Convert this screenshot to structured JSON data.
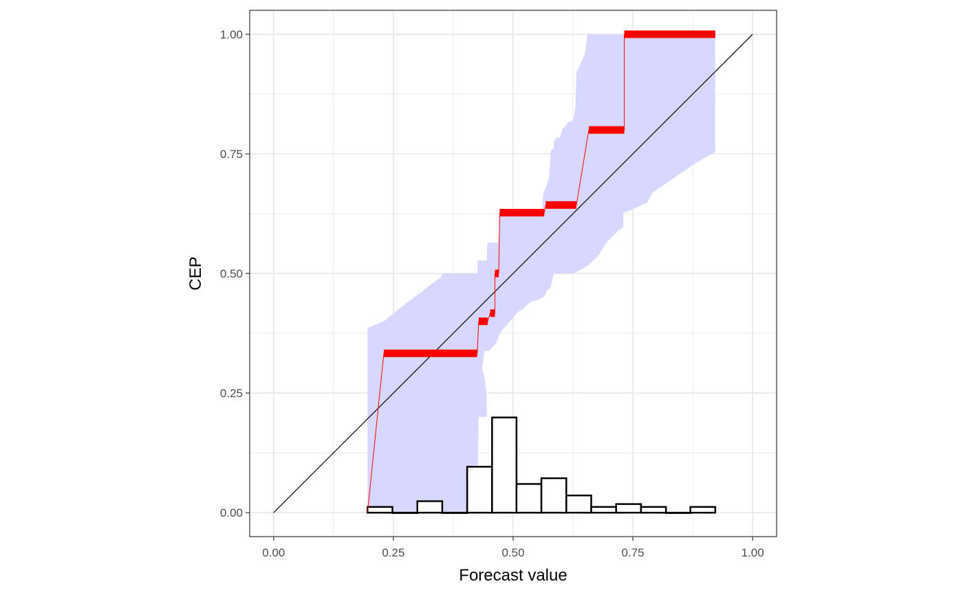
{
  "chart_data": {
    "type": "line",
    "title": "",
    "xlabel": "Forecast value",
    "ylabel": "CEP",
    "xlim": [
      -0.05,
      1.05
    ],
    "ylim": [
      -0.05,
      1.05
    ],
    "x_ticks": [
      0.0,
      0.25,
      0.5,
      0.75,
      1.0
    ],
    "x_tick_labels": [
      "0.00",
      "0.25",
      "0.50",
      "0.75",
      "1.00"
    ],
    "y_ticks": [
      0.0,
      0.25,
      0.5,
      0.75,
      1.0
    ],
    "y_tick_labels": [
      "0.00",
      "0.25",
      "0.50",
      "0.75",
      "1.00"
    ],
    "grid": true,
    "colors": {
      "band": "#d7d7ff",
      "cep": "#ff0000",
      "diagonal": "#000000",
      "histogram_fill": "#ffffff",
      "histogram_stroke": "#000000",
      "grid": "#ebebeb",
      "panel_border": "#333333"
    },
    "diagonal": [
      [
        0,
        0
      ],
      [
        1,
        1
      ]
    ],
    "band_upper": [
      [
        0.196,
        0.386
      ],
      [
        0.23,
        0.4
      ],
      [
        0.26,
        0.425
      ],
      [
        0.3,
        0.455
      ],
      [
        0.33,
        0.478
      ],
      [
        0.35,
        0.493
      ],
      [
        0.352,
        0.5
      ],
      [
        0.425,
        0.5
      ],
      [
        0.426,
        0.527
      ],
      [
        0.445,
        0.527
      ],
      [
        0.446,
        0.564
      ],
      [
        0.468,
        0.564
      ],
      [
        0.47,
        0.575
      ],
      [
        0.472,
        0.6
      ],
      [
        0.472,
        0.62
      ],
      [
        0.48,
        0.63
      ],
      [
        0.56,
        0.63
      ],
      [
        0.563,
        0.666
      ],
      [
        0.575,
        0.7
      ],
      [
        0.578,
        0.745
      ],
      [
        0.578,
        0.756
      ],
      [
        0.585,
        0.762
      ],
      [
        0.585,
        0.775
      ],
      [
        0.59,
        0.784
      ],
      [
        0.598,
        0.784
      ],
      [
        0.602,
        0.8
      ],
      [
        0.615,
        0.816
      ],
      [
        0.625,
        0.82
      ],
      [
        0.63,
        0.846
      ],
      [
        0.632,
        0.918
      ],
      [
        0.65,
        0.96
      ],
      [
        0.655,
        1.0
      ],
      [
        0.922,
        1.0
      ]
    ],
    "band_lower": [
      [
        0.922,
        0.754
      ],
      [
        0.88,
        0.73
      ],
      [
        0.79,
        0.668
      ],
      [
        0.78,
        0.648
      ],
      [
        0.74,
        0.63
      ],
      [
        0.73,
        0.627
      ],
      [
        0.73,
        0.597
      ],
      [
        0.72,
        0.59
      ],
      [
        0.695,
        0.565
      ],
      [
        0.68,
        0.54
      ],
      [
        0.66,
        0.52
      ],
      [
        0.645,
        0.51
      ],
      [
        0.625,
        0.5
      ],
      [
        0.585,
        0.5
      ],
      [
        0.578,
        0.47
      ],
      [
        0.57,
        0.464
      ],
      [
        0.565,
        0.452
      ],
      [
        0.555,
        0.446
      ],
      [
        0.535,
        0.44
      ],
      [
        0.52,
        0.425
      ],
      [
        0.51,
        0.42
      ],
      [
        0.48,
        0.385
      ],
      [
        0.47,
        0.37
      ],
      [
        0.465,
        0.355
      ],
      [
        0.45,
        0.338
      ],
      [
        0.44,
        0.338
      ],
      [
        0.435,
        0.3
      ],
      [
        0.44,
        0.285
      ],
      [
        0.445,
        0.24
      ],
      [
        0.445,
        0.2
      ],
      [
        0.428,
        0.2
      ],
      [
        0.425,
        0.0
      ],
      [
        0.196,
        0.0
      ]
    ],
    "cep_series": {
      "segments": [
        {
          "x": [
            0.23,
            0.425
          ],
          "y": 0.333
        },
        {
          "x": [
            0.428,
            0.447
          ],
          "y": 0.4
        },
        {
          "x": [
            0.452,
            0.462
          ],
          "y": 0.417
        },
        {
          "x": [
            0.462,
            0.47
          ],
          "y": 0.5
        },
        {
          "x": [
            0.472,
            0.565
          ],
          "y": 0.627
        },
        {
          "x": [
            0.568,
            0.632
          ],
          "y": 0.643
        },
        {
          "x": [
            0.658,
            0.732
          ],
          "y": 0.8
        },
        {
          "x": [
            0.732,
            0.922
          ],
          "y": 1.0
        }
      ],
      "connector": [
        [
          0.196,
          0.0
        ],
        [
          0.23,
          0.333
        ],
        [
          0.425,
          0.333
        ],
        [
          0.428,
          0.4
        ],
        [
          0.447,
          0.4
        ],
        [
          0.452,
          0.417
        ],
        [
          0.462,
          0.417
        ],
        [
          0.462,
          0.5
        ],
        [
          0.47,
          0.5
        ],
        [
          0.472,
          0.627
        ],
        [
          0.565,
          0.627
        ],
        [
          0.568,
          0.643
        ],
        [
          0.632,
          0.643
        ],
        [
          0.658,
          0.8
        ],
        [
          0.732,
          0.8
        ],
        [
          0.732,
          1.0
        ],
        [
          0.922,
          1.0
        ]
      ]
    },
    "histogram": {
      "bins": [
        {
          "x0": 0.196,
          "x1": 0.248,
          "y": 0.012
        },
        {
          "x0": 0.248,
          "x1": 0.3,
          "y": 0.0
        },
        {
          "x0": 0.3,
          "x1": 0.352,
          "y": 0.024
        },
        {
          "x0": 0.352,
          "x1": 0.404,
          "y": 0.0
        },
        {
          "x0": 0.404,
          "x1": 0.456,
          "y": 0.096
        },
        {
          "x0": 0.456,
          "x1": 0.507,
          "y": 0.199
        },
        {
          "x0": 0.507,
          "x1": 0.559,
          "y": 0.06
        },
        {
          "x0": 0.559,
          "x1": 0.611,
          "y": 0.072
        },
        {
          "x0": 0.611,
          "x1": 0.663,
          "y": 0.036
        },
        {
          "x0": 0.663,
          "x1": 0.715,
          "y": 0.012
        },
        {
          "x0": 0.715,
          "x1": 0.767,
          "y": 0.018
        },
        {
          "x0": 0.767,
          "x1": 0.819,
          "y": 0.012
        },
        {
          "x0": 0.819,
          "x1": 0.87,
          "y": 0.0
        },
        {
          "x0": 0.87,
          "x1": 0.922,
          "y": 0.012
        }
      ]
    }
  }
}
